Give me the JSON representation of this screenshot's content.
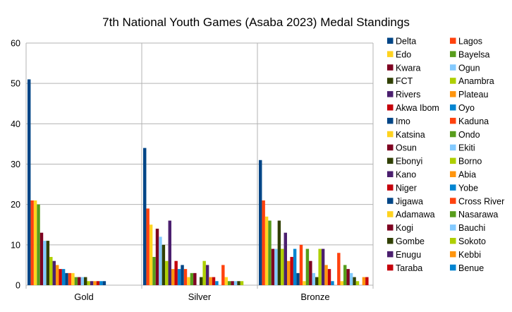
{
  "chart_data": {
    "type": "bar",
    "title": "7th National Youth Games (Asaba 2023) Medal Standings",
    "xlabel": "",
    "ylabel": "",
    "ylim": [
      0,
      60
    ],
    "yticks": [
      0,
      10,
      20,
      30,
      40,
      50,
      60
    ],
    "grid": true,
    "legend_position": "right",
    "categories": [
      "Gold",
      "Silver",
      "Bronze"
    ],
    "series": [
      {
        "name": "Delta",
        "color": "#004586",
        "values": [
          51,
          34,
          31
        ]
      },
      {
        "name": "Lagos",
        "color": "#ff420e",
        "values": [
          21,
          19,
          21
        ]
      },
      {
        "name": "Edo",
        "color": "#ffd320",
        "values": [
          21,
          15,
          17
        ]
      },
      {
        "name": "Bayelsa",
        "color": "#579d1c",
        "values": [
          20,
          7,
          16
        ]
      },
      {
        "name": "Kwara",
        "color": "#7e0021",
        "values": [
          13,
          14,
          9
        ]
      },
      {
        "name": "Ogun",
        "color": "#83caff",
        "values": [
          11,
          12,
          9
        ]
      },
      {
        "name": "FCT",
        "color": "#314004",
        "values": [
          11,
          10,
          16
        ]
      },
      {
        "name": "Anambra",
        "color": "#aecf00",
        "values": [
          7,
          6,
          9
        ]
      },
      {
        "name": "Rivers",
        "color": "#4b1f6f",
        "values": [
          6,
          16,
          13
        ]
      },
      {
        "name": "Plateau",
        "color": "#ff950e",
        "values": [
          5,
          4,
          6
        ]
      },
      {
        "name": "Akwa Ibom",
        "color": "#c5000b",
        "values": [
          4,
          6,
          7
        ]
      },
      {
        "name": "Oyo",
        "color": "#0084d1",
        "values": [
          4,
          4,
          9
        ]
      },
      {
        "name": "Imo",
        "color": "#004586",
        "values": [
          3,
          5,
          3
        ]
      },
      {
        "name": "Kaduna",
        "color": "#ff420e",
        "values": [
          3,
          4,
          10
        ]
      },
      {
        "name": "Katsina",
        "color": "#ffd320",
        "values": [
          3,
          2,
          1
        ]
      },
      {
        "name": "Ondo",
        "color": "#579d1c",
        "values": [
          2,
          3,
          9
        ]
      },
      {
        "name": "Osun",
        "color": "#7e0021",
        "values": [
          2,
          3,
          6
        ]
      },
      {
        "name": "Ekiti",
        "color": "#83caff",
        "values": [
          2,
          0,
          3
        ]
      },
      {
        "name": "Ebonyi",
        "color": "#314004",
        "values": [
          2,
          2,
          2
        ]
      },
      {
        "name": "Borno",
        "color": "#aecf00",
        "values": [
          1,
          6,
          9
        ]
      },
      {
        "name": "Kano",
        "color": "#4b1f6f",
        "values": [
          1,
          5,
          9
        ]
      },
      {
        "name": "Abia",
        "color": "#ff950e",
        "values": [
          1,
          2,
          5
        ]
      },
      {
        "name": "Niger",
        "color": "#c5000b",
        "values": [
          1,
          2,
          4
        ]
      },
      {
        "name": "Yobe",
        "color": "#0084d1",
        "values": [
          1,
          1,
          1
        ]
      },
      {
        "name": "Jigawa",
        "color": "#004586",
        "values": [
          1,
          0,
          0
        ]
      },
      {
        "name": "Cross River",
        "color": "#ff420e",
        "values": [
          0,
          5,
          8
        ]
      },
      {
        "name": "Adamawa",
        "color": "#ffd320",
        "values": [
          0,
          2,
          1
        ]
      },
      {
        "name": "Nasarawa",
        "color": "#579d1c",
        "values": [
          0,
          1,
          5
        ]
      },
      {
        "name": "Kogi",
        "color": "#7e0021",
        "values": [
          0,
          1,
          4
        ]
      },
      {
        "name": "Bauchi",
        "color": "#83caff",
        "values": [
          0,
          1,
          3
        ]
      },
      {
        "name": "Gombe",
        "color": "#314004",
        "values": [
          0,
          1,
          2
        ]
      },
      {
        "name": "Sokoto",
        "color": "#aecf00",
        "values": [
          0,
          1,
          1
        ]
      },
      {
        "name": "Enugu",
        "color": "#4b1f6f",
        "values": [
          0,
          0,
          0
        ]
      },
      {
        "name": "Kebbi",
        "color": "#ff950e",
        "values": [
          0,
          0,
          2
        ]
      },
      {
        "name": "Taraba",
        "color": "#c5000b",
        "values": [
          0,
          0,
          2
        ]
      },
      {
        "name": "Benue",
        "color": "#0084d1",
        "values": [
          0,
          0,
          0
        ]
      }
    ]
  }
}
